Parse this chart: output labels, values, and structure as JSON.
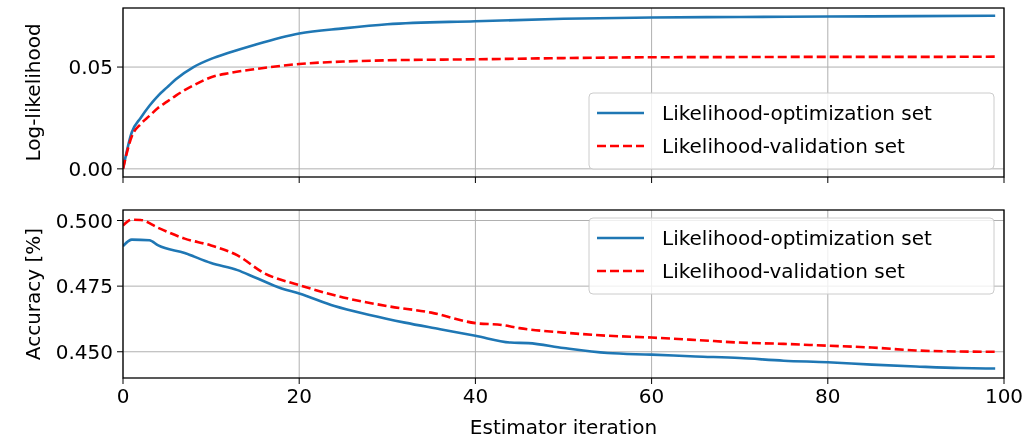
{
  "chart_data": [
    {
      "type": "line",
      "ylabel": "Log-likelihood",
      "xlim": [
        0,
        100
      ],
      "xticks": [
        0,
        20,
        40,
        60,
        80,
        100
      ],
      "ylim": [
        -0.004,
        0.079
      ],
      "yticks": [
        {
          "value": 0,
          "label": "0.00"
        },
        0.05
      ],
      "tick_labels": "y",
      "grid": true,
      "legend": "bottom right",
      "series": [
        {
          "name": "Likelihood-optimization set",
          "color": "#1f77b4",
          "line_style": "solid",
          "x": [
            0,
            1,
            2,
            3,
            4,
            5,
            6,
            8,
            10,
            12,
            15,
            20,
            25,
            30,
            40,
            50,
            60,
            70,
            80,
            90,
            99
          ],
          "values": [
            0,
            0.018,
            0.025,
            0.031,
            0.036,
            0.04,
            0.044,
            0.05,
            0.054,
            0.057,
            0.061,
            0.0665,
            0.069,
            0.071,
            0.0725,
            0.0737,
            0.0743,
            0.0746,
            0.0748,
            0.075,
            0.0752
          ]
        },
        {
          "name": "Likelihood-validation set",
          "color": "#ff0000",
          "line_style": "dashed",
          "x": [
            0,
            1,
            2,
            3,
            4,
            5,
            6,
            8,
            10,
            12,
            15,
            20,
            25,
            30,
            40,
            50,
            60,
            70,
            80,
            90,
            99
          ],
          "values": [
            0,
            0.016,
            0.022,
            0.026,
            0.03,
            0.033,
            0.036,
            0.041,
            0.045,
            0.047,
            0.049,
            0.0515,
            0.0527,
            0.0533,
            0.0538,
            0.0544,
            0.0548,
            0.0549,
            0.055,
            0.055,
            0.0551
          ]
        }
      ]
    },
    {
      "type": "line",
      "xlabel": "Estimator iteration",
      "ylabel": "Accuracy [%]",
      "xlim": [
        0,
        100
      ],
      "xticks": [
        0,
        20,
        40,
        60,
        80,
        100
      ],
      "ylim": [
        0.44,
        0.504
      ],
      "yticks": [
        {
          "value": 0.45,
          "label": "0.450"
        },
        0.475,
        {
          "value": 0.5,
          "label": "0.500"
        }
      ],
      "grid": true,
      "legend": "top right",
      "series": [
        {
          "name": "Likelihood-optimization set",
          "color": "#1f77b4",
          "line_style": "solid",
          "x": [
            0,
            1,
            3,
            4,
            7,
            10,
            13,
            15,
            18,
            20,
            24,
            28,
            32,
            36,
            40,
            44,
            46,
            50,
            55,
            60,
            65,
            70,
            75,
            80,
            85,
            90,
            95,
            99
          ],
          "values": [
            0.4902,
            0.4927,
            0.4925,
            0.4905,
            0.4876,
            0.4838,
            0.4811,
            0.4783,
            0.4741,
            0.4722,
            0.4674,
            0.464,
            0.4611,
            0.4586,
            0.4561,
            0.4535,
            0.4533,
            0.4514,
            0.4495,
            0.4489,
            0.4482,
            0.4476,
            0.4466,
            0.446,
            0.4451,
            0.4444,
            0.4438,
            0.4436
          ]
        },
        {
          "name": "Likelihood-validation set",
          "color": "#ff0000",
          "line_style": "dashed",
          "x": [
            0,
            1,
            2,
            4,
            7,
            10,
            13,
            16,
            20,
            25,
            30,
            35,
            40,
            43,
            45,
            50,
            55,
            60,
            65,
            70,
            75,
            80,
            85,
            90,
            95,
            99
          ],
          "values": [
            0.4981,
            0.5003,
            0.5002,
            0.4972,
            0.4931,
            0.4905,
            0.4867,
            0.48,
            0.4754,
            0.4707,
            0.4674,
            0.4649,
            0.4609,
            0.4602,
            0.459,
            0.4573,
            0.4561,
            0.4554,
            0.4545,
            0.4535,
            0.453,
            0.4523,
            0.4516,
            0.4505,
            0.4501,
            0.45
          ]
        }
      ]
    }
  ]
}
